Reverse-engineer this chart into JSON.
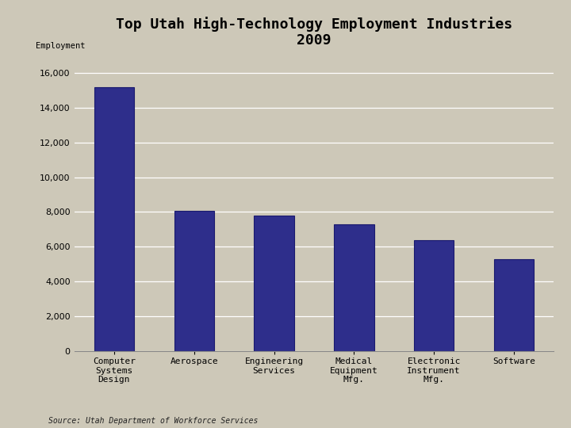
{
  "title": "Top Utah High-Technology Employment Industries\n2009",
  "ylabel": "Employment",
  "source": "Source: Utah Department of Workforce Services",
  "categories": [
    "Computer\nSystems\nDesign",
    "Aerospace",
    "Engineering\nServices",
    "Medical\nEquipment\nMfg.",
    "Electronic\nInstrument\nMfg.",
    "Software"
  ],
  "values": [
    15200,
    8050,
    7800,
    7300,
    6400,
    5300
  ],
  "bar_color": "#2E2E8B",
  "bar_edge_color": "#1a1a6e",
  "background_color": "#cdc8b8",
  "plot_bg_color": "#cdc8b8",
  "ylim": [
    0,
    17000
  ],
  "yticks": [
    0,
    2000,
    4000,
    6000,
    8000,
    10000,
    12000,
    14000,
    16000
  ],
  "title_fontsize": 13,
  "tick_fontsize": 8,
  "source_fontsize": 7,
  "ylabel_fontsize": 7.5
}
